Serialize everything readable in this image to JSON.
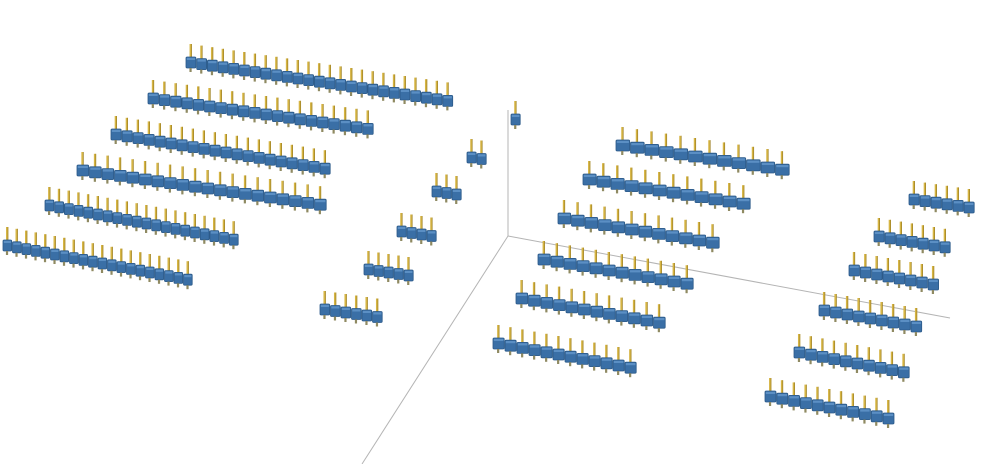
{
  "viewer": {
    "background": "#ffffff",
    "axis_color": "#b4b4b4",
    "body_color": "#3a6fa6",
    "body_top_color": "#5b8fc4",
    "body_side_color": "#2c5a89",
    "pin_color": "#d6b544",
    "pin_shadow_color": "#9c7f22",
    "foot_color": "#8f8a62"
  },
  "models": {
    "left_group": {
      "description": "pin headers",
      "pin_counts": [
        25,
        20,
        20,
        20,
        20,
        20
      ]
    },
    "middle_group": {
      "pin_counts": [
        1,
        2,
        3,
        4,
        5,
        6
      ]
    },
    "right_group_a": {
      "pin_counts": [
        12,
        12,
        12,
        12,
        12,
        12
      ]
    },
    "right_group_b": {
      "pin_counts": [
        6,
        7,
        8,
        9,
        10,
        11
      ]
    }
  }
}
